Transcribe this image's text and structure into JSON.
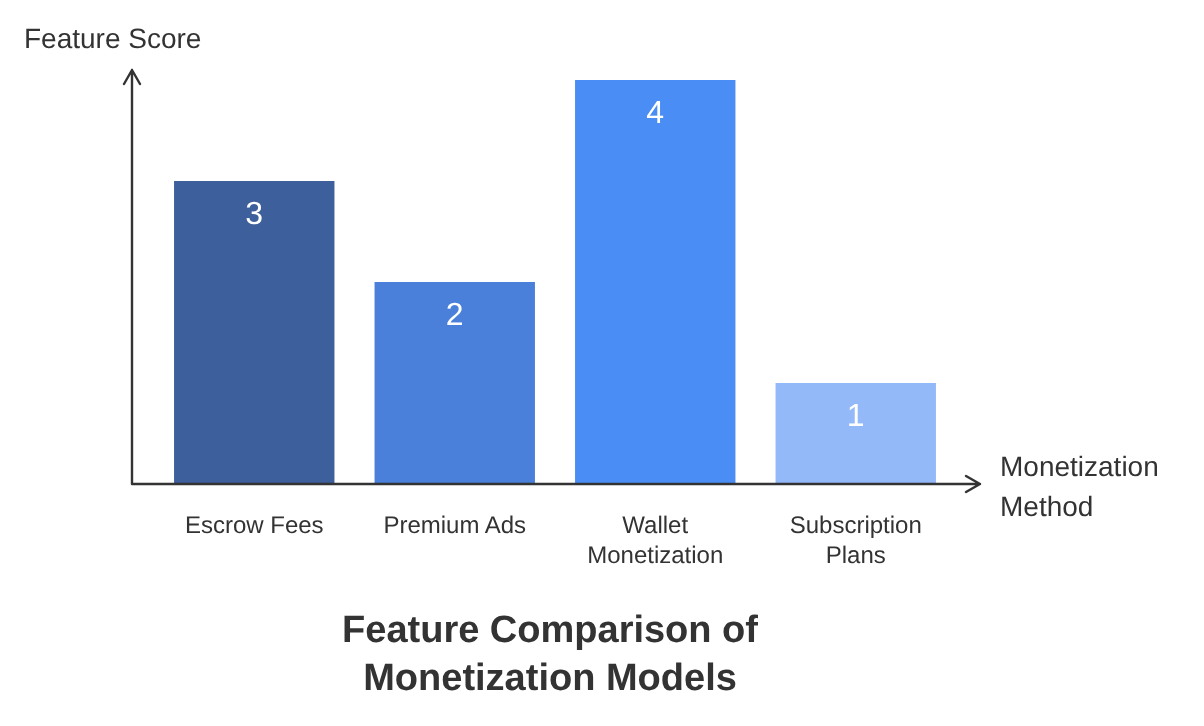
{
  "chart_data": {
    "type": "bar",
    "title": "Feature Comparison of Monetization Models",
    "xlabel": "Monetization Method",
    "ylabel": "Feature Score",
    "categories": [
      "Escrow Fees",
      "Premium Ads",
      "Wallet Monetization",
      "Subscription Plans"
    ],
    "values": [
      3,
      2,
      4,
      1
    ],
    "colors": [
      "#3d5f9b",
      "#4a80d9",
      "#4a8ef5",
      "#93b9f8"
    ],
    "data_labels": true,
    "legend": false
  }
}
